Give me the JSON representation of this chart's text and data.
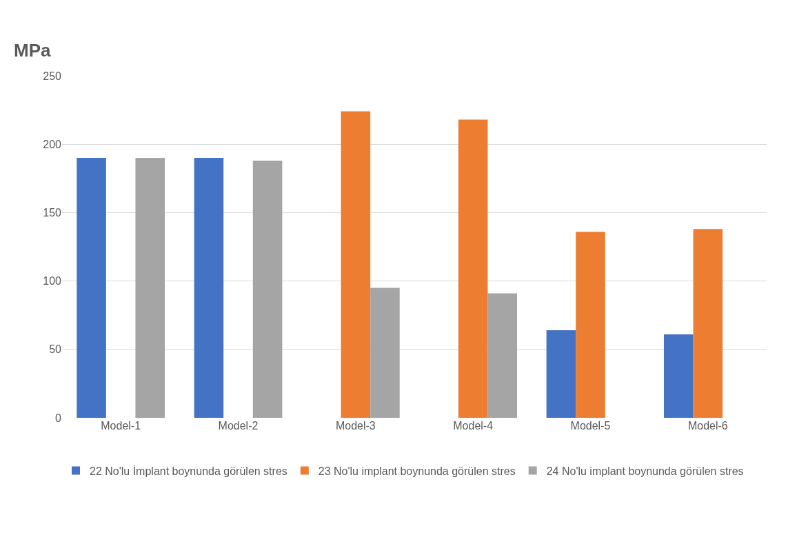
{
  "chart_data": {
    "type": "bar",
    "ylabel": "MPa",
    "categories": [
      "Model-1",
      "Model-2",
      "Model-3",
      "Model-4",
      "Model-5",
      "Model-6"
    ],
    "series": [
      {
        "name": "22 No'lu İmplant boynunda görülen stres",
        "color": "#4472c4",
        "values": [
          190,
          190,
          0,
          0,
          64,
          61
        ]
      },
      {
        "name": "23 No'lu implant boynunda görülen stres",
        "color": "#ed7d31",
        "values": [
          0,
          0,
          224,
          218,
          136,
          138
        ]
      },
      {
        "name": "24 No'lu implant boynunda görülen stres",
        "color": "#a5a5a5",
        "values": [
          190,
          188,
          95,
          91,
          0,
          0
        ]
      }
    ],
    "ylim": [
      0,
      250
    ],
    "yticks": [
      0,
      50,
      100,
      150,
      200,
      250
    ],
    "grid": "y",
    "legend": "bottom"
  }
}
